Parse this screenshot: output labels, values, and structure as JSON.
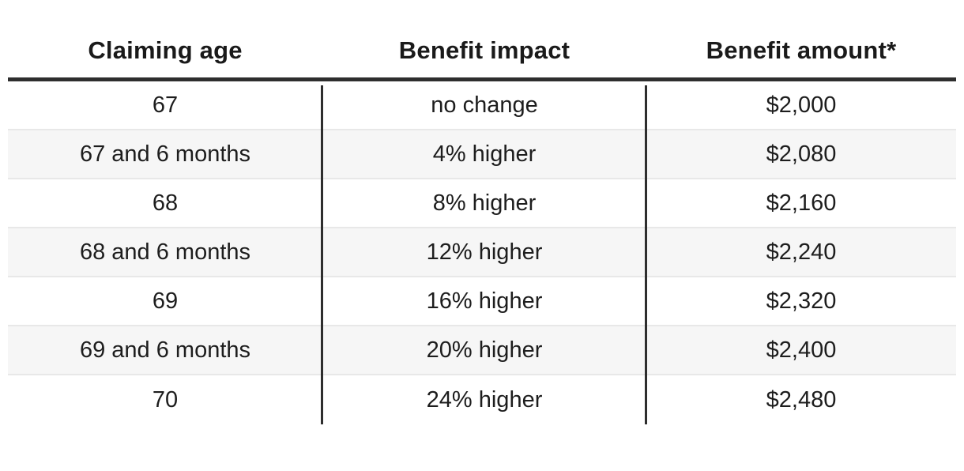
{
  "chart_data": {
    "type": "table",
    "columns": [
      "Claiming age",
      "Benefit impact",
      "Benefit amount*"
    ],
    "rows": [
      [
        "67",
        "no change",
        "$2,000"
      ],
      [
        "67 and 6 months",
        "4% higher",
        "$2,080"
      ],
      [
        "68",
        "8% higher",
        "$2,160"
      ],
      [
        "68 and 6 months",
        "12% higher",
        "$2,240"
      ],
      [
        "69",
        "16% higher",
        "$2,320"
      ],
      [
        "69 and 6 months",
        "20% higher",
        "$2,400"
      ],
      [
        "70",
        "24% higher",
        "$2,480"
      ]
    ],
    "layout_hints": {
      "zebra_striping": true,
      "header_rule": "thick",
      "column_dividers": "dark vertical lines in body only"
    }
  },
  "colors": {
    "header_rule": "#2e2e2e",
    "column_divider": "#2e2e2e",
    "row_separator": "#e8e8e8",
    "alt_row_bg": "#f6f6f6",
    "row_bg": "#ffffff",
    "text": "#1d1d1d"
  }
}
